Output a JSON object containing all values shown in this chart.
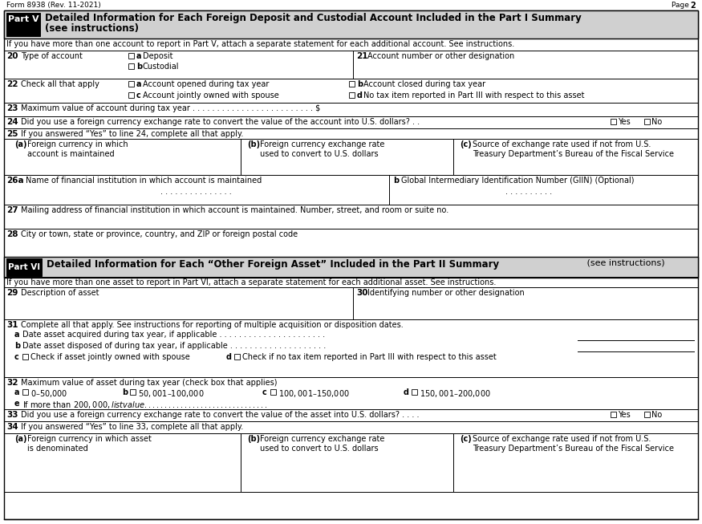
{
  "background_color": "#ffffff",
  "form_number": "Form 8938 (Rev. 11-2021)",
  "page_label": "Page ",
  "page_num": "2",
  "part5_label": "Part V",
  "part5_title_bold": "Detailed Information for Each Foreign Deposit and Custodial Account Included in the Part I Summary",
  "part5_subtitle": "(see instructions)",
  "part5_note": "If you have more than one account to report in Part V, attach a separate statement for each additional account. See instructions.",
  "part6_label": "Part VI",
  "part6_title_bold": "Detailed Information for Each “Other Foreign Asset” Included in the Part II Summary",
  "part6_title_normal": " (see instructions)",
  "part6_note": "If you have more than one asset to report in Part VI, attach a separate statement for each additional asset. See instructions."
}
